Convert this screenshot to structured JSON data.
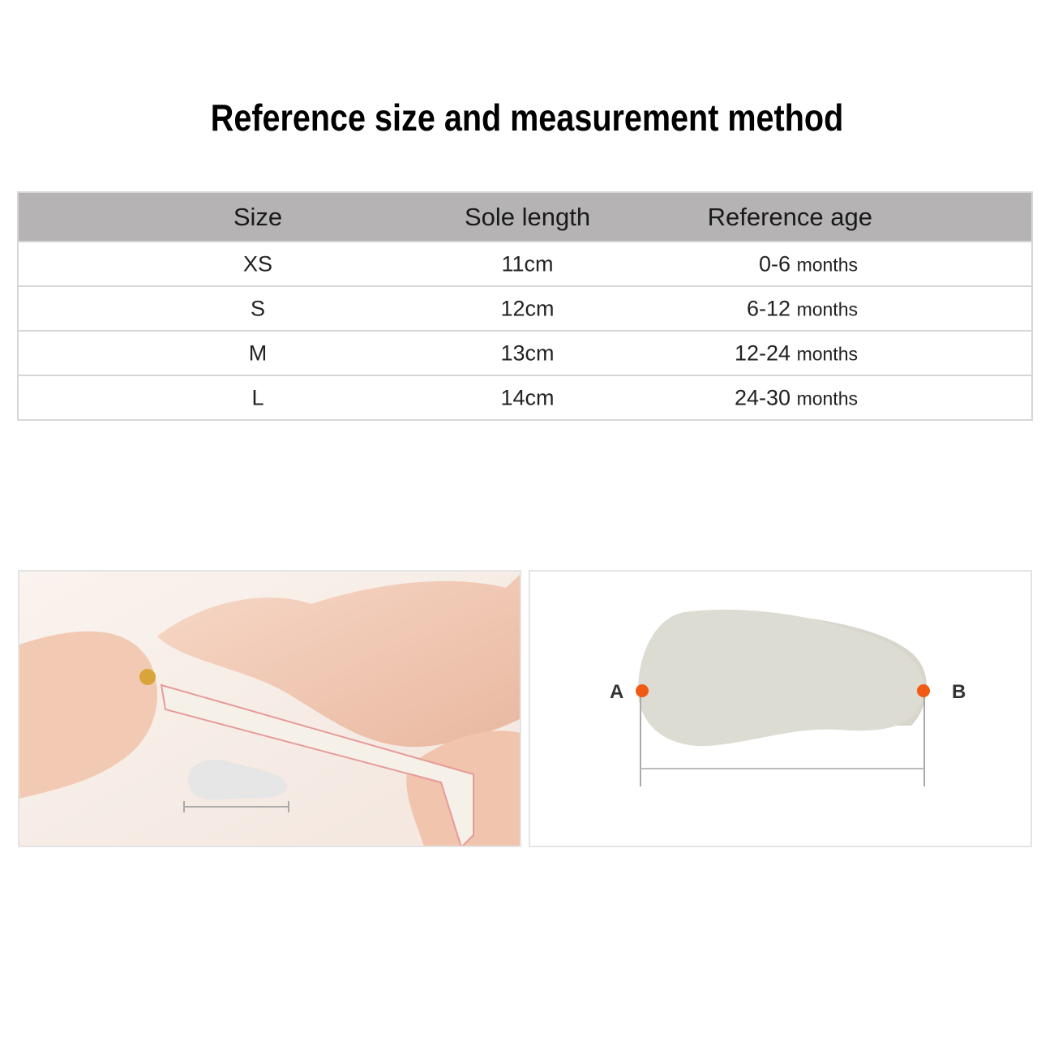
{
  "title": "Reference size and measurement method",
  "table": {
    "headers": [
      "Size",
      "Sole length",
      "Reference age"
    ],
    "rows": [
      {
        "size": "XS",
        "length": "11cm",
        "age": "0-6",
        "unit": "months"
      },
      {
        "size": "S",
        "length": "12cm",
        "age": "6-12",
        "unit": "months"
      },
      {
        "size": "M",
        "length": "13cm",
        "age": "12-24",
        "unit": "months"
      },
      {
        "size": "L",
        "length": "14cm",
        "age": "24-30",
        "unit": "months"
      }
    ]
  },
  "diagram": {
    "point_a": "A",
    "point_b": "B",
    "marker_color": "#f05a14"
  },
  "colors": {
    "header_bg": "#b5b3b4"
  }
}
